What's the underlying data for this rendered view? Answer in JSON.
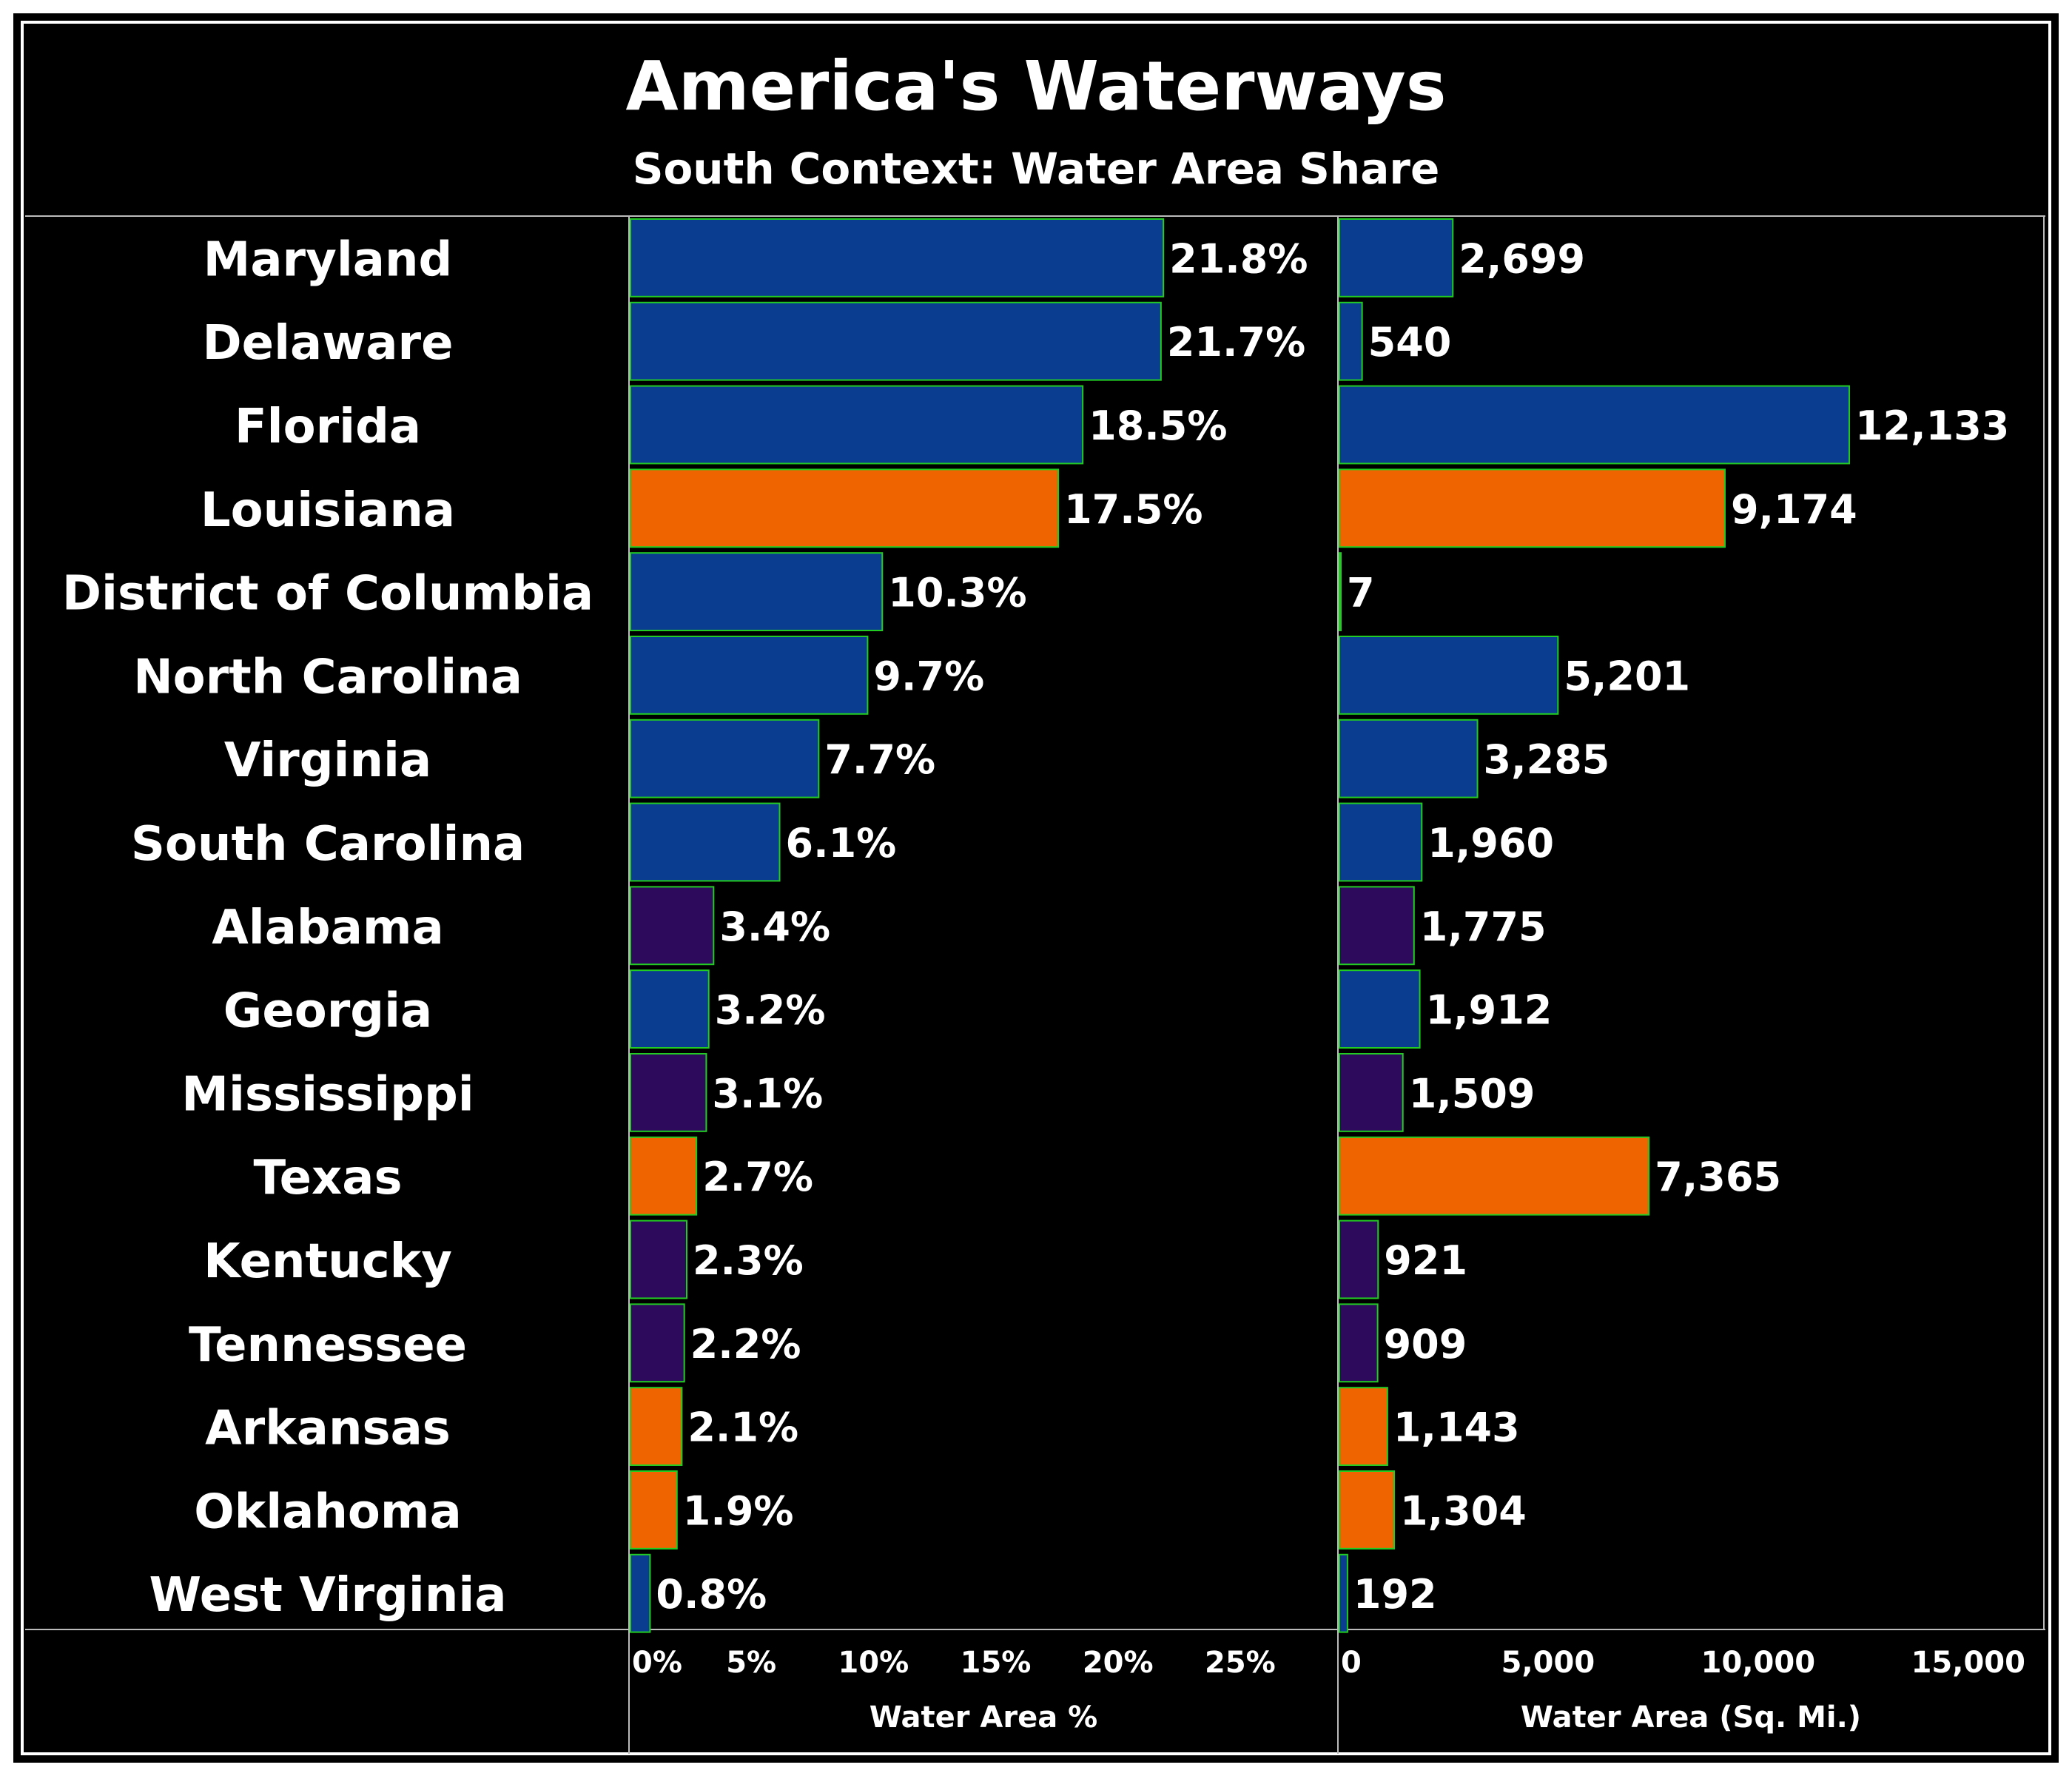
{
  "colors": {
    "background": "#000000",
    "text": "#ffffff",
    "bar_outline": "#22cc22",
    "blue": "#0a3d8f",
    "orange": "#f06400",
    "purple": "#2e0a5c",
    "grid": "#bbbbbb"
  },
  "chart_data": {
    "type": "bar",
    "orientation": "horizontal",
    "title": "America's Waterways",
    "subtitle": "South Context: Water Area Share",
    "categories": [
      "Maryland",
      "Delaware",
      "Florida",
      "Louisiana",
      "District of Columbia",
      "North Carolina",
      "Virginia",
      "South Carolina",
      "Alabama",
      "Georgia",
      "Mississippi",
      "Texas",
      "Kentucky",
      "Tennessee",
      "Arkansas",
      "Oklahoma",
      "West Virginia"
    ],
    "color_groups": [
      "blue",
      "blue",
      "blue",
      "orange",
      "blue",
      "blue",
      "blue",
      "blue",
      "purple",
      "blue",
      "purple",
      "orange",
      "purple",
      "purple",
      "orange",
      "orange",
      "blue"
    ],
    "panels": [
      {
        "name": "percent",
        "xlabel": "Water Area %",
        "xlim": [
          0,
          29
        ],
        "ticks": [
          0,
          5,
          10,
          15,
          20,
          25
        ],
        "tick_labels": [
          "0%",
          "5%",
          "10%",
          "15%",
          "20%",
          "25%"
        ],
        "values": [
          21.8,
          21.7,
          18.5,
          17.5,
          10.3,
          9.7,
          7.7,
          6.1,
          3.4,
          3.2,
          3.1,
          2.7,
          2.3,
          2.2,
          2.1,
          1.9,
          0.8
        ],
        "value_labels": [
          "21.8%",
          "21.7%",
          "18.5%",
          "17.5%",
          "10.3%",
          "9.7%",
          "7.7%",
          "6.1%",
          "3.4%",
          "3.2%",
          "3.1%",
          "2.7%",
          "2.3%",
          "2.2%",
          "2.1%",
          "1.9%",
          "0.8%"
        ]
      },
      {
        "name": "area",
        "xlabel": "Water Area (Sq. Mi.)",
        "xlim": [
          0,
          16800
        ],
        "ticks": [
          0,
          5000,
          10000,
          15000
        ],
        "tick_labels": [
          "0",
          "5,000",
          "10,000",
          "15,000"
        ],
        "values": [
          2699,
          540,
          12133,
          9174,
          7,
          5201,
          3285,
          1960,
          1775,
          1912,
          1509,
          7365,
          921,
          909,
          1143,
          1304,
          192
        ],
        "value_labels": [
          "2,699",
          "540",
          "12,133",
          "9,174",
          "7",
          "5,201",
          "3,285",
          "1,960",
          "1,775",
          "1,912",
          "1,509",
          "7,365",
          "921",
          "909",
          "1,143",
          "1,304",
          "192"
        ]
      }
    ],
    "grid": false,
    "legend": "none"
  }
}
